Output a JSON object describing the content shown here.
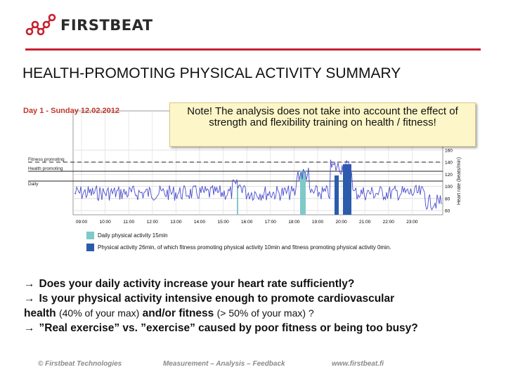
{
  "brand": {
    "name": "FIRSTBEAT"
  },
  "title": "HEALTH-PROMOTING PHYSICAL ACTIVITY SUMMARY",
  "chart": {
    "day_label": "Day 1 - Sunday 12.02.2012",
    "zone_labels": [
      "Fitness promoting",
      "Health promoting",
      "Daily"
    ],
    "x_ticks": [
      "09:00",
      "10:00",
      "11:00",
      "12:00",
      "13:00",
      "14:00",
      "15:00",
      "16:00",
      "17:00",
      "18:00",
      "19:00",
      "20:00",
      "21:00",
      "22:00",
      "23:00"
    ],
    "y_ticks": [
      "160",
      "140",
      "120",
      "100",
      "80",
      "60"
    ],
    "y_axis_label": "Heart rate (beats/min)",
    "legend": [
      {
        "label": "Daily physical activity 15min",
        "color": "#7fc9c9"
      },
      {
        "label": "Physical activity 26min, of which fitness promoting physical activity 10min and fitness promoting physical activity 0min.",
        "color": "#2a5cab"
      }
    ]
  },
  "note": "Note! The analysis does not take into account the effect of strength and flexibility training on health / fitness!",
  "bullets": {
    "arrow": "→",
    "line1": "Does your daily activity increase your heart rate sufficiently?",
    "line2a": "Is your physical activity intensive enough to promote cardiovascular",
    "line2b": "health",
    "line2c": "(40% of your max)",
    "line2d": "and/or fitness",
    "line2e": "(> 50% of your max) ?",
    "line3": "”Real exercise” vs. ”exercise” caused by poor fitness or being too busy?"
  },
  "footer": {
    "left": "© Firstbeat Technologies",
    "center": "Measurement – Analysis – Feedback",
    "right": "www.firstbeat.fi"
  },
  "colors": {
    "accent": "#c8202f",
    "hr_line": "#4b4bcf",
    "light_bar": "#7fc9c9",
    "dark_bar": "#2a5cab"
  }
}
